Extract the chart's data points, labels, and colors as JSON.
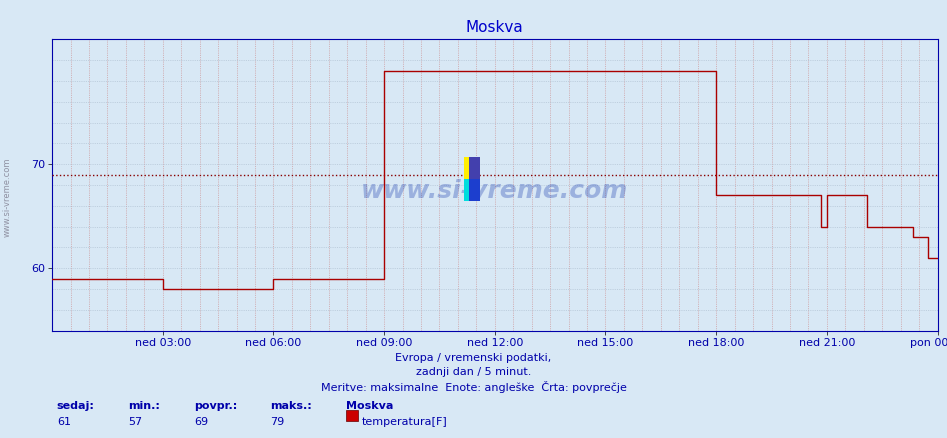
{
  "title": "Moskva",
  "title_color": "#0000cc",
  "bg_color": "#d8e8f5",
  "plot_bg_color": "#d8e8f5",
  "line_color": "#aa0000",
  "avg_line_color": "#880000",
  "avg_value": 69,
  "xlim": [
    0,
    288
  ],
  "ylim": [
    54,
    82
  ],
  "yticks": [
    60,
    70
  ],
  "xtick_labels": [
    "ned 03:00",
    "ned 06:00",
    "ned 09:00",
    "ned 12:00",
    "ned 15:00",
    "ned 18:00",
    "ned 21:00",
    "pon 00:00"
  ],
  "xtick_positions": [
    36,
    72,
    108,
    144,
    180,
    216,
    252,
    288
  ],
  "watermark": "www.si-vreme.com",
  "subtitle1": "Evropa / vremenski podatki,",
  "subtitle2": "zadnji dan / 5 minut.",
  "subtitle3": "Meritve: maksimalne  Enote: angleške  Črta: povprečje",
  "legend_label1": "sedaj:",
  "legend_val1": "61",
  "legend_label2": "min.:",
  "legend_val2": "57",
  "legend_label3": "povpr.:",
  "legend_val3": "69",
  "legend_label4": "maks.:",
  "legend_val4": "79",
  "legend_series": "Moskva",
  "legend_temp_label": "temperatura[F]",
  "sidebar_text": "www.si-vreme.com",
  "sidebar_color": "#888899",
  "time_points": [
    0,
    36,
    36,
    72,
    72,
    108,
    108,
    144,
    144,
    216,
    216,
    250,
    250,
    252,
    252,
    265,
    265,
    270,
    270,
    280,
    280,
    285,
    285,
    288
  ],
  "temp_values": [
    59,
    59,
    58,
    58,
    59,
    59,
    79,
    79,
    79,
    79,
    67,
    67,
    64,
    64,
    67,
    67,
    64,
    64,
    64,
    64,
    63,
    63,
    61,
    61
  ]
}
